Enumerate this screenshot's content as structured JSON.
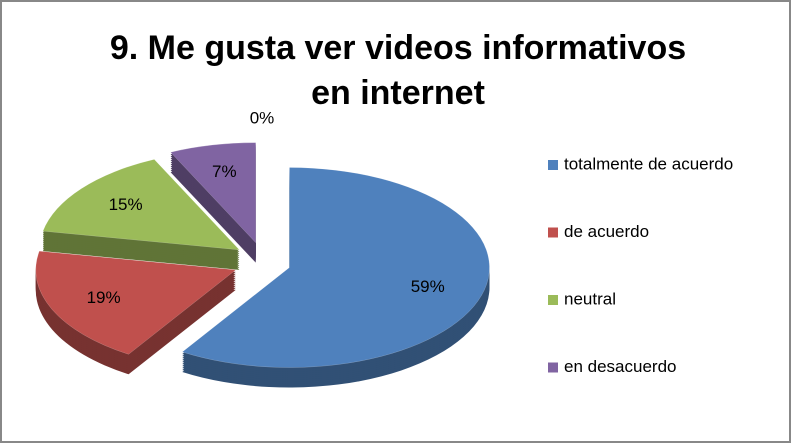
{
  "chart_data": {
    "type": "pie",
    "title": [
      "9. Me gusta ver videos informativos",
      "en internet"
    ],
    "categories": [
      "totalmente de acuerdo",
      "de acuerdo",
      "neutral",
      "en desacuerdo",
      null
    ],
    "values": [
      59,
      19,
      15,
      7,
      0
    ],
    "value_labels": [
      "59%",
      "19%",
      "15%",
      "7%",
      "0%"
    ],
    "colors": [
      "#4f81bd",
      "#c0504d",
      "#9bbb59",
      "#8064a2",
      "#4bacc6"
    ],
    "legend": "right",
    "exploded": true,
    "three_d": true
  }
}
